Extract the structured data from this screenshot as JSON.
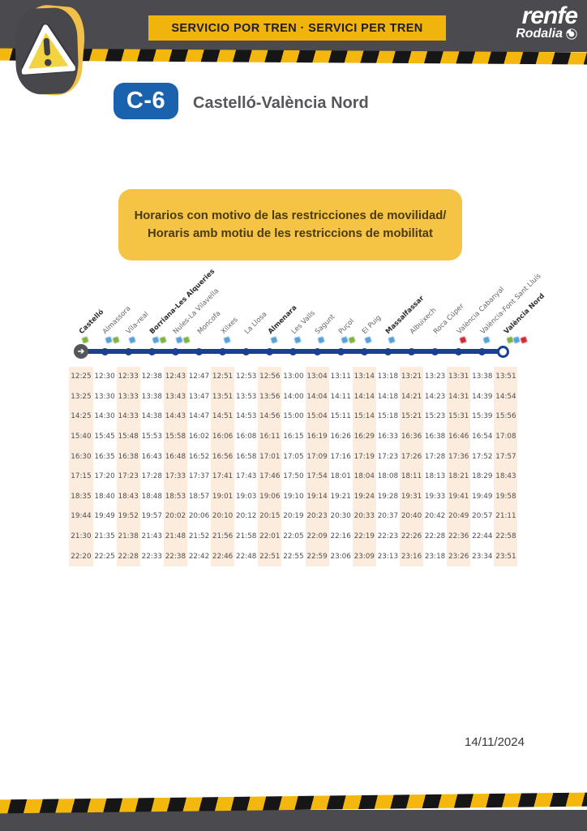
{
  "header": {
    "banner_text": "SERVICIO POR TREN · SERVICI PER TREN",
    "brand": "renfe",
    "sub_brand": "Rodalia"
  },
  "line": {
    "badge": "C-6",
    "title": "Castelló-València Nord",
    "badge_color": "#1a61ae"
  },
  "notice": {
    "line1": "Horarios con motivo de las restricciones de movilidad/",
    "line2": "Horaris amb motiu de les restriccions de mobilitat",
    "background_color": "#f6c445"
  },
  "route": {
    "line_color": "#1c3f94",
    "stations": [
      {
        "name": "Castelló",
        "bold": true,
        "icons": [
          "green"
        ]
      },
      {
        "name": "Almassora",
        "bold": false,
        "icons": [
          "blue",
          "green"
        ]
      },
      {
        "name": "Vila-real",
        "bold": false,
        "icons": [
          "blue"
        ]
      },
      {
        "name": "Borriana-Les Alqueries",
        "bold": true,
        "icons": [
          "blue",
          "green"
        ]
      },
      {
        "name": "Nules-La Vilavella",
        "bold": false,
        "icons": [
          "blue",
          "green"
        ]
      },
      {
        "name": "Moncofa",
        "bold": false,
        "icons": []
      },
      {
        "name": "Xilxes",
        "bold": false,
        "icons": [
          "blue"
        ]
      },
      {
        "name": "La Llosa",
        "bold": false,
        "icons": []
      },
      {
        "name": "Almenara",
        "bold": true,
        "icons": [
          "blue"
        ]
      },
      {
        "name": "Les Valls",
        "bold": false,
        "icons": [
          "blue"
        ]
      },
      {
        "name": "Sagunt",
        "bold": false,
        "icons": [
          "blue"
        ]
      },
      {
        "name": "Puçol",
        "bold": false,
        "icons": [
          "blue",
          "green"
        ]
      },
      {
        "name": "El Puig",
        "bold": false,
        "icons": [
          "blue"
        ]
      },
      {
        "name": "Massalfassar",
        "bold": true,
        "icons": [
          "blue"
        ]
      },
      {
        "name": "Albuixech",
        "bold": false,
        "icons": []
      },
      {
        "name": "Roca Cúper",
        "bold": false,
        "icons": []
      },
      {
        "name": "València Cabanyal",
        "bold": false,
        "icons": [
          "red"
        ]
      },
      {
        "name": "València-Font Sant Lluís",
        "bold": false,
        "icons": [
          "blue"
        ]
      },
      {
        "name": "València Nord",
        "bold": true,
        "icons": [
          "green",
          "blue",
          "red"
        ]
      }
    ]
  },
  "timetable": {
    "stripe_color": "#fcecdd",
    "rows": [
      [
        "12:25",
        "12:30",
        "12:33",
        "12:38",
        "12:43",
        "12:47",
        "12:51",
        "12:53",
        "12:56",
        "13:00",
        "13:04",
        "13:11",
        "13:14",
        "13:18",
        "13:21",
        "13:23",
        "13:31",
        "13:38",
        "13:51"
      ],
      [
        "13:25",
        "13:30",
        "13:33",
        "13:38",
        "13:43",
        "13:47",
        "13:51",
        "13:53",
        "13:56",
        "14:00",
        "14:04",
        "14:11",
        "14:14",
        "14:18",
        "14:21",
        "14:23",
        "14:31",
        "14:39",
        "14:54"
      ],
      [
        "14:25",
        "14:30",
        "14:33",
        "14:38",
        "14:43",
        "14:47",
        "14:51",
        "14:53",
        "14:56",
        "15:00",
        "15:04",
        "15:11",
        "15:14",
        "15:18",
        "15:21",
        "15:23",
        "15:31",
        "15:39",
        "15:56"
      ],
      [
        "15:40",
        "15:45",
        "15:48",
        "15:53",
        "15:58",
        "16:02",
        "16:06",
        "16:08",
        "16:11",
        "16:15",
        "16:19",
        "16:26",
        "16:29",
        "16:33",
        "16:36",
        "16:38",
        "16:46",
        "16:54",
        "17:08"
      ],
      [
        "16:30",
        "16:35",
        "16:38",
        "16:43",
        "16:48",
        "16:52",
        "16:56",
        "16:58",
        "17:01",
        "17:05",
        "17:09",
        "17:16",
        "17:19",
        "17:23",
        "17:26",
        "17:28",
        "17:36",
        "17:52",
        "17:57"
      ],
      [
        "17:15",
        "17:20",
        "17:23",
        "17:28",
        "17:33",
        "17:37",
        "17:41",
        "17:43",
        "17:46",
        "17:50",
        "17:54",
        "18:01",
        "18:04",
        "18:08",
        "18:11",
        "18:13",
        "18:21",
        "18:29",
        "18:43"
      ],
      [
        "18:35",
        "18:40",
        "18:43",
        "18:48",
        "18:53",
        "18:57",
        "19:01",
        "19:03",
        "19:06",
        "19:10",
        "19:14",
        "19:21",
        "19:24",
        "19:28",
        "19:31",
        "19:33",
        "19:41",
        "19:49",
        "19:58"
      ],
      [
        "19:44",
        "19:49",
        "19:52",
        "19:57",
        "20:02",
        "20:06",
        "20:10",
        "20:12",
        "20:15",
        "20:19",
        "20:23",
        "20:30",
        "20:33",
        "20:37",
        "20:40",
        "20:42",
        "20:49",
        "20:57",
        "21:11"
      ],
      [
        "21:30",
        "21:35",
        "21:38",
        "21:43",
        "21:48",
        "21:52",
        "21:56",
        "21:58",
        "22:01",
        "22:05",
        "22:09",
        "22:16",
        "22:19",
        "22:23",
        "22:26",
        "22:28",
        "22:36",
        "22:44",
        "22:58"
      ],
      [
        "22:20",
        "22:25",
        "22:28",
        "22:33",
        "22:38",
        "22:42",
        "22:46",
        "22:48",
        "22:51",
        "22:55",
        "22:59",
        "23:06",
        "23:09",
        "23:13",
        "23:16",
        "23:18",
        "23:26",
        "23:34",
        "23:51"
      ]
    ]
  },
  "footer": {
    "date": "14/11/2024"
  }
}
